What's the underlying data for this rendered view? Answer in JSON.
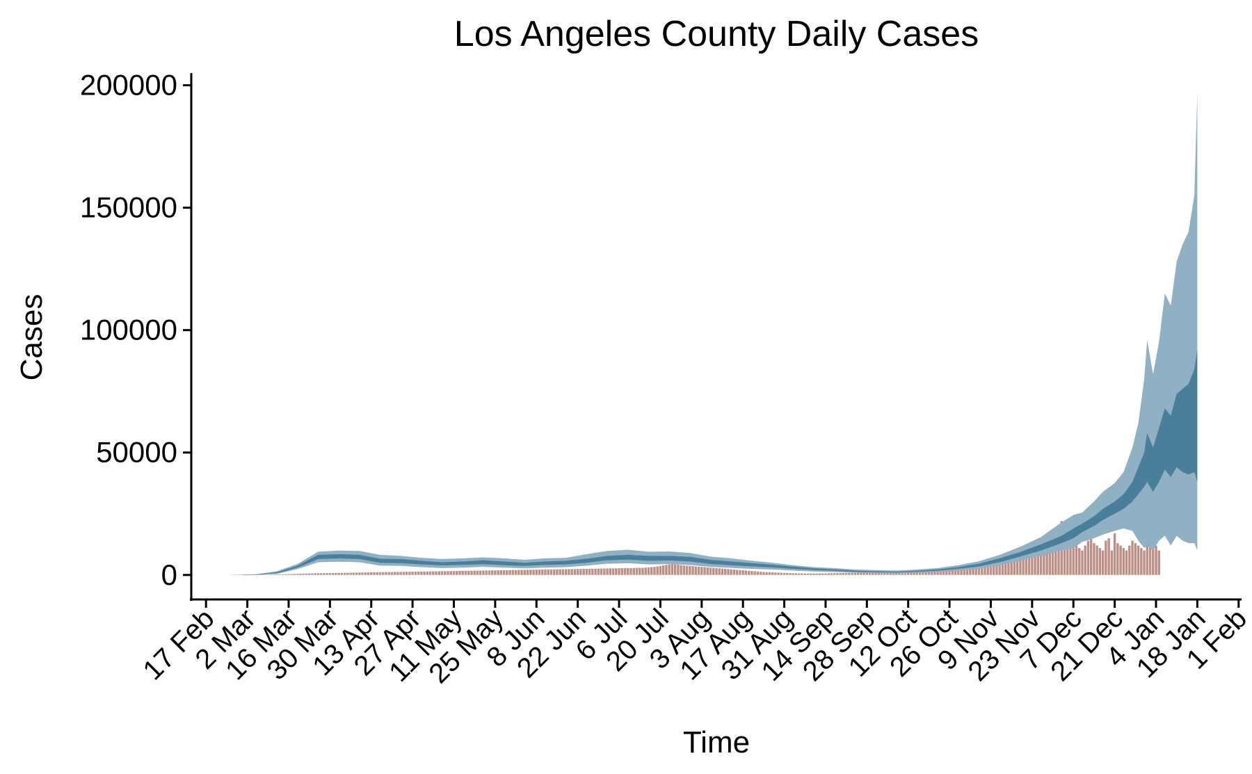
{
  "chart_data": {
    "type": "area",
    "title": "Los Angeles County Daily Cases",
    "xlabel": "Time",
    "ylabel": "Cases",
    "ylim": [
      -10000,
      205000
    ],
    "xlim": [
      "2020-02-12",
      "2021-02-02"
    ],
    "yticks": [
      0,
      50000,
      100000,
      150000,
      200000
    ],
    "ytick_labels": [
      "0",
      "50000",
      "100000",
      "150000",
      "200000"
    ],
    "xticks": [
      "2020-02-17",
      "2020-03-02",
      "2020-03-16",
      "2020-03-30",
      "2020-04-13",
      "2020-04-27",
      "2020-05-11",
      "2020-05-25",
      "2020-06-08",
      "2020-06-22",
      "2020-07-06",
      "2020-07-20",
      "2020-08-03",
      "2020-08-17",
      "2020-08-31",
      "2020-09-14",
      "2020-09-28",
      "2020-10-12",
      "2020-10-26",
      "2020-11-09",
      "2020-11-23",
      "2020-12-07",
      "2020-12-21",
      "2021-01-04",
      "2021-01-18",
      "2021-02-01"
    ],
    "xtick_labels": [
      "17 Feb",
      "2 Mar",
      "16 Mar",
      "30 Mar",
      "13 Apr",
      "27 Apr",
      "11 May",
      "25 May",
      "8 Jun",
      "22 Jun",
      "6 Jul",
      "20 Jul",
      "3 Aug",
      "17 Aug",
      "31 Aug",
      "14 Sep",
      "28 Sep",
      "12 Oct",
      "26 Oct",
      "9 Nov",
      "23 Nov",
      "7 Dec",
      "21 Dec",
      "4 Jan",
      "18 Jan",
      "1 Feb"
    ],
    "grid": false,
    "legend": "none",
    "colors": {
      "outer_band": "#8fb1c3",
      "inner_band": "#4a7f9c",
      "observed_bars": "#bc8f87"
    },
    "band_dates": [
      "2020-02-24",
      "2020-03-05",
      "2020-03-12",
      "2020-03-19",
      "2020-03-26",
      "2020-04-02",
      "2020-04-09",
      "2020-04-16",
      "2020-04-23",
      "2020-04-30",
      "2020-05-07",
      "2020-05-14",
      "2020-05-21",
      "2020-05-28",
      "2020-06-04",
      "2020-06-11",
      "2020-06-18",
      "2020-06-25",
      "2020-07-02",
      "2020-07-09",
      "2020-07-16",
      "2020-07-23",
      "2020-07-30",
      "2020-08-06",
      "2020-08-13",
      "2020-08-20",
      "2020-08-27",
      "2020-09-03",
      "2020-09-10",
      "2020-09-17",
      "2020-09-24",
      "2020-10-01",
      "2020-10-08",
      "2020-10-15",
      "2020-10-22",
      "2020-10-29",
      "2020-11-05",
      "2020-11-12",
      "2020-11-19",
      "2020-11-26",
      "2020-12-03",
      "2020-12-07",
      "2020-12-10",
      "2020-12-14",
      "2020-12-17",
      "2020-12-21",
      "2020-12-24",
      "2020-12-27",
      "2020-12-29",
      "2020-12-31",
      "2021-01-01",
      "2021-01-03",
      "2021-01-05",
      "2021-01-07",
      "2021-01-09",
      "2021-01-11",
      "2021-01-13",
      "2021-01-15",
      "2021-01-17",
      "2021-01-18"
    ],
    "outer_upper": [
      0,
      300,
      1500,
      4500,
      9500,
      10000,
      9800,
      8200,
      7800,
      7000,
      6500,
      6800,
      7200,
      6800,
      6200,
      6800,
      7000,
      8500,
      9800,
      10300,
      9500,
      9600,
      9000,
      7500,
      6800,
      5800,
      5000,
      4000,
      3200,
      2800,
      2200,
      2000,
      1800,
      2200,
      2800,
      4000,
      5600,
      8200,
      11500,
      15500,
      21500,
      24500,
      25500,
      30000,
      34000,
      37500,
      42000,
      52000,
      62000,
      80000,
      96000,
      82000,
      95000,
      115000,
      110000,
      128000,
      135000,
      140000,
      155000,
      197000
    ],
    "inner_upper": [
      0,
      250,
      1100,
      3800,
      8200,
      8500,
      8200,
      6600,
      6500,
      5800,
      5200,
      5500,
      6000,
      5500,
      5000,
      5500,
      5800,
      6600,
      7800,
      8200,
      7800,
      7800,
      7400,
      6200,
      5500,
      4800,
      4200,
      3400,
      2700,
      2300,
      1800,
      1500,
      1400,
      1700,
      2300,
      3200,
      4600,
      6800,
      9400,
      12500,
      16000,
      19000,
      21000,
      24000,
      27000,
      30000,
      33000,
      38000,
      44000,
      50000,
      58000,
      52000,
      60000,
      68000,
      65000,
      74000,
      76000,
      78000,
      84000,
      92000
    ],
    "inner_lower": [
      0,
      150,
      700,
      3000,
      6500,
      6800,
      6500,
      5000,
      4800,
      4300,
      3900,
      4100,
      4400,
      4000,
      3700,
      4100,
      4300,
      5000,
      6000,
      6300,
      5800,
      5900,
      5500,
      4500,
      4000,
      3500,
      3100,
      2500,
      2000,
      1700,
      1300,
      1100,
      1000,
      1300,
      1700,
      2500,
      3500,
      5200,
      7500,
      10000,
      13000,
      15000,
      17500,
      20000,
      22500,
      25000,
      27000,
      30000,
      33000,
      36000,
      38000,
      34000,
      38000,
      43000,
      40000,
      44000,
      42000,
      41000,
      42000,
      38000
    ],
    "outer_lower": [
      0,
      100,
      400,
      2400,
      5200,
      5400,
      5200,
      3800,
      3700,
      3200,
      2800,
      3000,
      3300,
      3000,
      2700,
      3000,
      3200,
      3800,
      4600,
      4800,
      4300,
      4400,
      4100,
      3300,
      2900,
      2500,
      2200,
      1800,
      1400,
      1200,
      900,
      800,
      700,
      900,
      1200,
      1800,
      2600,
      4000,
      5800,
      7800,
      10000,
      11000,
      13500,
      15000,
      16500,
      18000,
      19000,
      18000,
      14000,
      11000,
      12000,
      10000,
      14000,
      16000,
      12000,
      16000,
      14000,
      13000,
      13000,
      10000
    ],
    "observed_start": "2020-03-01",
    "observed_daily": [
      40,
      50,
      60,
      70,
      80,
      90,
      100,
      120,
      140,
      160,
      180,
      200,
      230,
      260,
      300,
      340,
      380,
      420,
      460,
      500,
      540,
      580,
      620,
      660,
      700,
      700,
      720,
      740,
      760,
      780,
      800,
      820,
      840,
      860,
      880,
      900,
      920,
      940,
      960,
      980,
      1000,
      1020,
      1040,
      1060,
      1080,
      1100,
      1120,
      1140,
      1160,
      1180,
      1200,
      1200,
      1220,
      1240,
      1260,
      1280,
      1300,
      1320,
      1340,
      1360,
      1380,
      1400,
      1420,
      1440,
      1460,
      1480,
      1500,
      1520,
      1540,
      1560,
      1580,
      1600,
      1620,
      1640,
      1660,
      1680,
      1700,
      1720,
      1740,
      1760,
      1780,
      1800,
      1820,
      1840,
      1860,
      1880,
      1900,
      1920,
      1940,
      1960,
      1980,
      2000,
      2020,
      2040,
      2060,
      2080,
      2100,
      2120,
      2140,
      2160,
      2180,
      2200,
      2220,
      2240,
      2260,
      2280,
      2300,
      2320,
      2340,
      2360,
      2380,
      2400,
      2420,
      2440,
      2460,
      2480,
      2500,
      2520,
      2540,
      2560,
      2580,
      2600,
      2620,
      2650,
      2680,
      2700,
      2720,
      2740,
      2760,
      2780,
      2800,
      2820,
      2840,
      2860,
      2880,
      2900,
      3000,
      3100,
      3200,
      3300,
      3500,
      3700,
      3900,
      4100,
      4300,
      4500,
      4300,
      4200,
      4000,
      3900,
      3800,
      3700,
      3600,
      3500,
      3400,
      3300,
      3200,
      3100,
      3000,
      2900,
      2800,
      2700,
      2600,
      2500,
      2400,
      2300,
      2200,
      2100,
      2000,
      1900,
      1800,
      1700,
      1600,
      1500,
      1400,
      1300,
      1200,
      1150,
      1100,
      1050,
      1000,
      950,
      900,
      850,
      800,
      750,
      700,
      680,
      660,
      640,
      620,
      600,
      600,
      600,
      600,
      620,
      640,
      660,
      680,
      700,
      720,
      740,
      760,
      780,
      800,
      820,
      840,
      860,
      880,
      900,
      920,
      940,
      960,
      980,
      1000,
      1050,
      1100,
      1150,
      1200,
      1250,
      1300,
      1350,
      1400,
      1450,
      1500,
      1550,
      1600,
      1700,
      1800,
      1900,
      2000,
      2100,
      2200,
      2300,
      2400,
      2500,
      2600,
      2700,
      2800,
      2900,
      3000,
      3200,
      3400,
      3600,
      3800,
      4000,
      4200,
      4400,
      4600,
      4800,
      5000,
      5300,
      5600,
      5900,
      6200,
      6500,
      6800,
      7100,
      7400,
      7700,
      8000,
      8400,
      8800,
      9200,
      9600,
      10000,
      10500,
      11000,
      11500,
      12000,
      12500,
      13000,
      13500,
      14000,
      14500,
      15000,
      16000,
      22000,
      17000,
      15000,
      14000,
      13000,
      12000,
      11000,
      10000,
      12000,
      14000,
      16000,
      13000,
      12000,
      11000,
      10000,
      14000,
      15000,
      10000,
      17000,
      13000,
      12000,
      11000,
      10000,
      12000,
      14000,
      13000,
      12000,
      11000,
      10000,
      16000,
      15000,
      13000,
      12000,
      10000
    ]
  }
}
